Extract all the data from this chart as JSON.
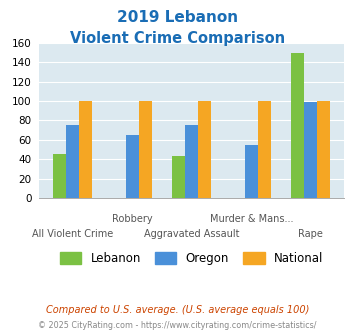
{
  "title_line1": "2019 Lebanon",
  "title_line2": "Violent Crime Comparison",
  "all_bars": [
    [
      45,
      75,
      100
    ],
    [
      null,
      65,
      100
    ],
    [
      43,
      75,
      100
    ],
    [
      null,
      55,
      100
    ],
    [
      150,
      99,
      100
    ]
  ],
  "legend_labels": [
    "Lebanon",
    "Oregon",
    "National"
  ],
  "colors": {
    "lebanon": "#7bc143",
    "oregon": "#4a90d9",
    "national": "#f5a623"
  },
  "ylim": [
    0,
    160
  ],
  "yticks": [
    0,
    20,
    40,
    60,
    80,
    100,
    120,
    140,
    160
  ],
  "title_color": "#1a6db5",
  "background_color": "#dce9f0",
  "top_labels": [
    "",
    "Robbery",
    "",
    "Murder & Mans...",
    ""
  ],
  "bottom_labels": [
    "All Violent Crime",
    "",
    "Aggravated Assault",
    "",
    "Rape"
  ],
  "footnote1": "Compared to U.S. average. (U.S. average equals 100)",
  "footnote2": "© 2025 CityRating.com - https://www.cityrating.com/crime-statistics/",
  "footnote1_color": "#cc4400",
  "footnote2_color": "#888888"
}
